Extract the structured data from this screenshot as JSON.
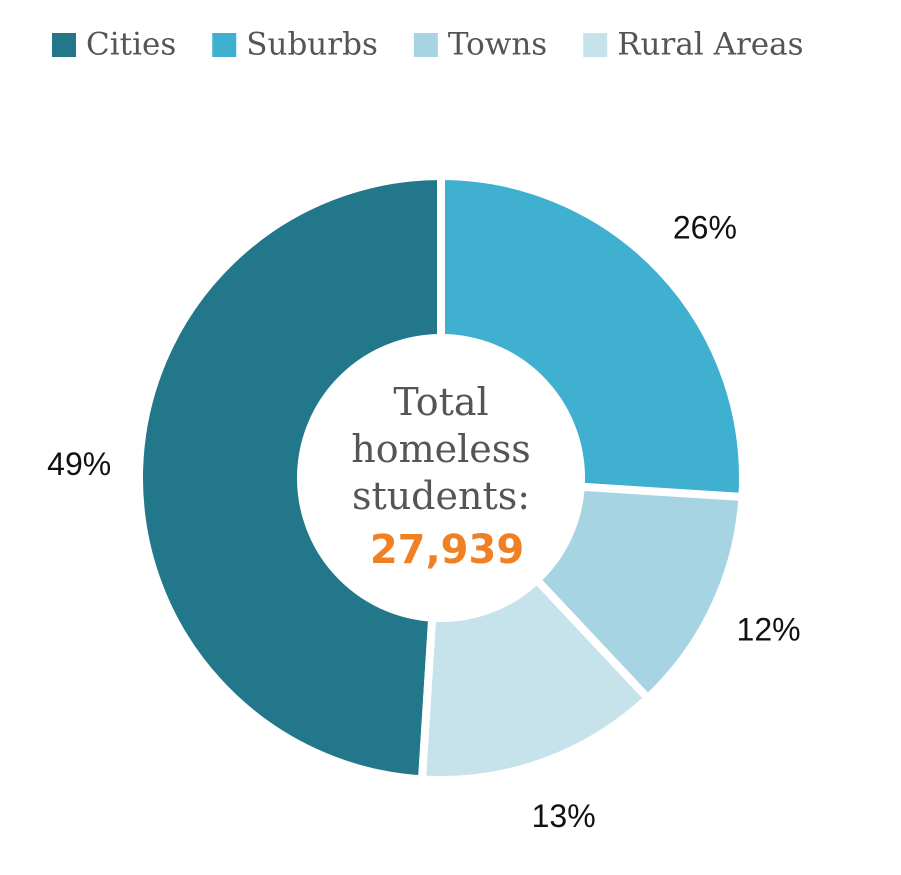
{
  "chart_data": {
    "type": "donut",
    "categories": [
      "Cities",
      "Suburbs",
      "Towns",
      "Rural Areas"
    ],
    "values": [
      49,
      26,
      12,
      13
    ],
    "value_labels": [
      "49%",
      "26%",
      "12%",
      "13%"
    ],
    "colors": [
      "#22778b",
      "#3fb0d0",
      "#a6d4e3",
      "#c6e3ec"
    ],
    "center_label": "Total homeless students:",
    "total": {
      "value": 27939,
      "label": "27,939"
    },
    "legend": "top"
  }
}
